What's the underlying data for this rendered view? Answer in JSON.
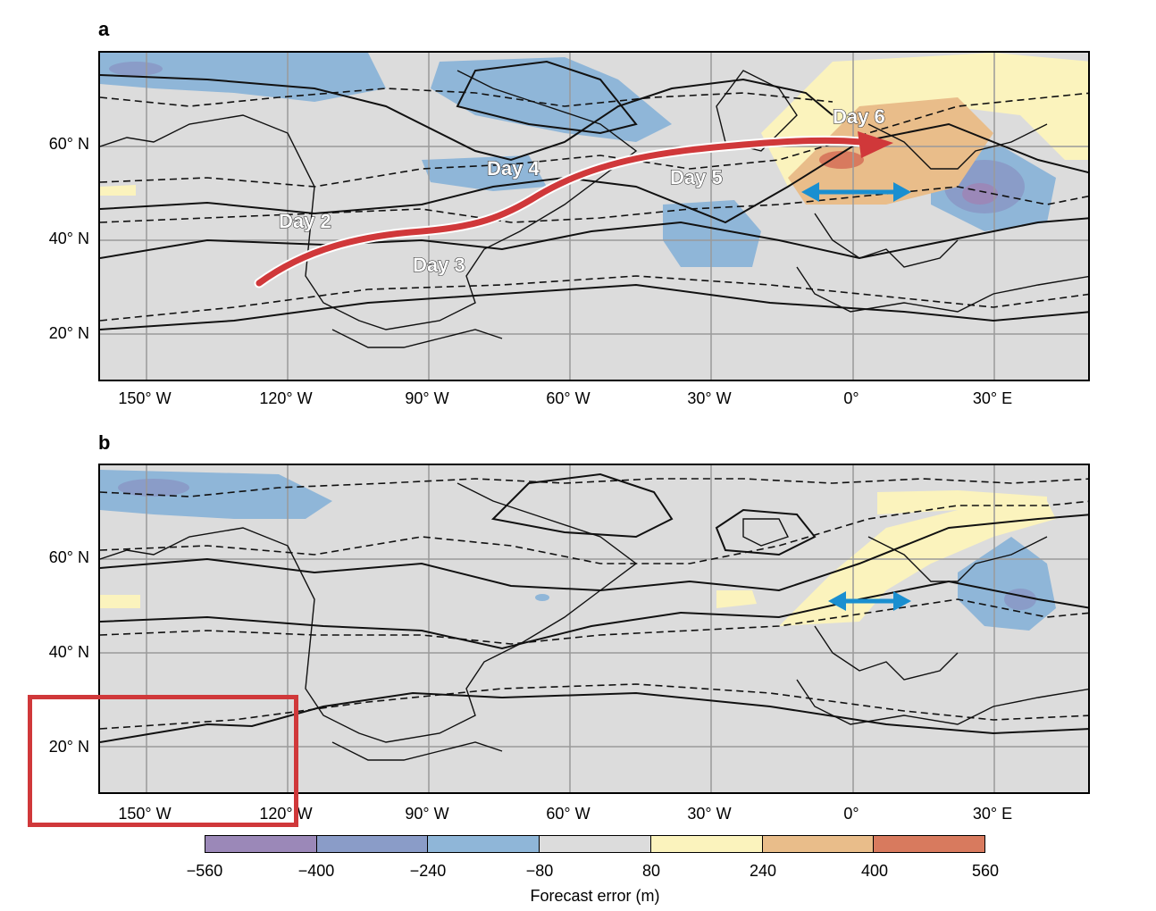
{
  "panels": [
    {
      "letter": "a"
    },
    {
      "letter": "b"
    }
  ],
  "lat_labels": [
    "60° N",
    "40° N",
    "20° N"
  ],
  "lon_labels": [
    "150° W",
    "120° W",
    "90° W",
    "60° W",
    "30° W",
    "0°",
    "30° E"
  ],
  "track_labels": {
    "day2": "Day 2",
    "day3": "Day 3",
    "day4": "Day 4",
    "day5": "Day 5",
    "day6": "Day 6"
  },
  "legend": {
    "title": "Forecast error (m)",
    "ticks": [
      "−560",
      "−400",
      "−240",
      "−80",
      "80",
      "240",
      "400",
      "560"
    ],
    "colors": [
      "#9b88b8",
      "#8a9cc8",
      "#8fb6d8",
      "#dcdcdc",
      "#fbf3bd",
      "#e9bd8a",
      "#d87a5e"
    ]
  },
  "colors": {
    "track_arrow": "#d0383a",
    "double_arrow": "#1a8fd0",
    "map_background": "#dcdcdc",
    "highlight_box": "#d0383a"
  }
}
